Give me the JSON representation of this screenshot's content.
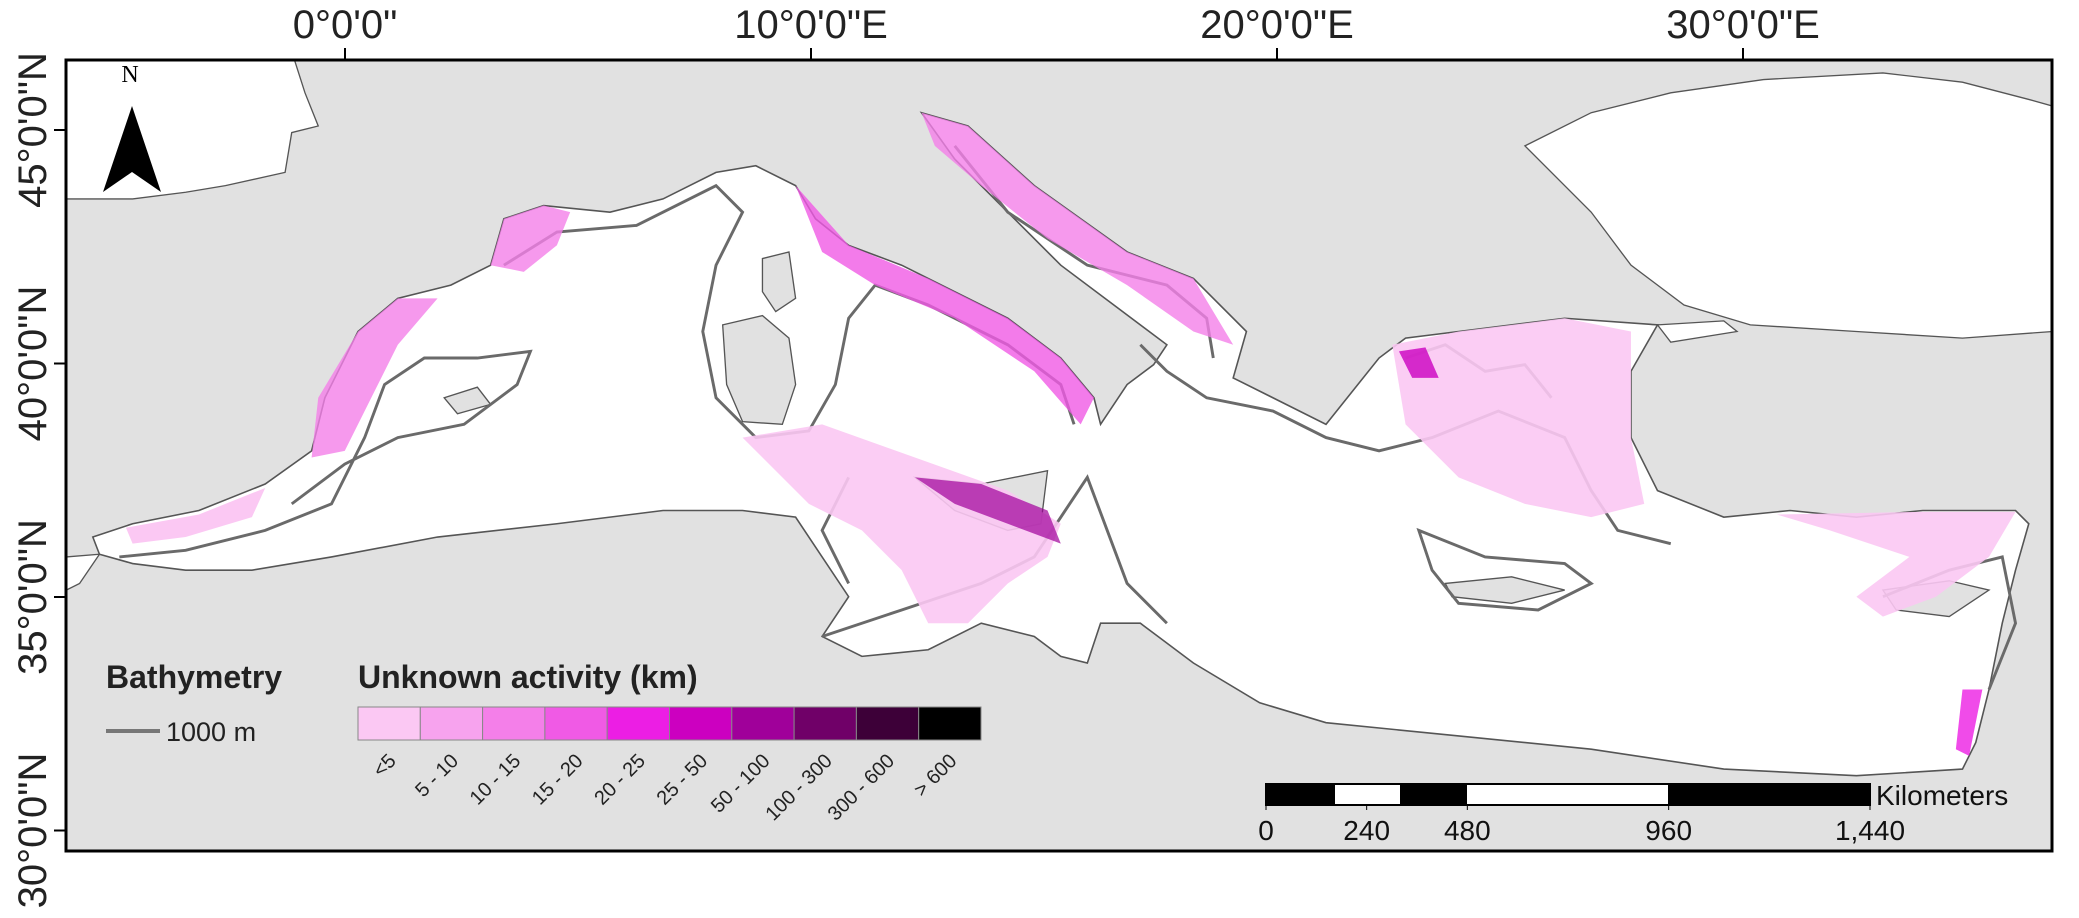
{
  "map": {
    "lon_ticks": [
      {
        "value": 0,
        "label": "0°0'0\""
      },
      {
        "value": 10,
        "label": "10°0'0\"E"
      },
      {
        "value": 20,
        "label": "20°0'0\"E"
      },
      {
        "value": 30,
        "label": "30°0'0\"E"
      }
    ],
    "lat_ticks": [
      {
        "value": 45,
        "label": "45°0'0\"N"
      },
      {
        "value": 40,
        "label": "40°0'0\"N"
      },
      {
        "value": 35,
        "label": "35°0'0\"N"
      },
      {
        "value": 30,
        "label": "30°0'0\"N"
      }
    ],
    "north": "N",
    "bathymetry": {
      "title": "Bathymetry",
      "label": "1000 m"
    },
    "legend": {
      "title": "Unknown activity (km)",
      "classes": [
        {
          "label": "<5",
          "color": "#fbc8f3"
        },
        {
          "label": "5 - 10",
          "color": "#f7a3ee"
        },
        {
          "label": "10 - 15",
          "color": "#f47fe9"
        },
        {
          "label": "15 - 20",
          "color": "#f05ae5"
        },
        {
          "label": "20 - 25",
          "color": "#ec1ee4"
        },
        {
          "label": "25 - 50",
          "color": "#cc00c0"
        },
        {
          "label": "50 - 100",
          "color": "#a0009a"
        },
        {
          "label": "100 - 300",
          "color": "#700068"
        },
        {
          "label": "300 - 600",
          "color": "#3d0038"
        },
        {
          "label": "> 600",
          "color": "#000000"
        }
      ]
    },
    "scale_bar": {
      "unit": "Kilometers",
      "ticks": [
        0,
        240,
        480,
        960,
        {
          "value": 1440,
          "label": "1,440"
        }
      ]
    }
  }
}
